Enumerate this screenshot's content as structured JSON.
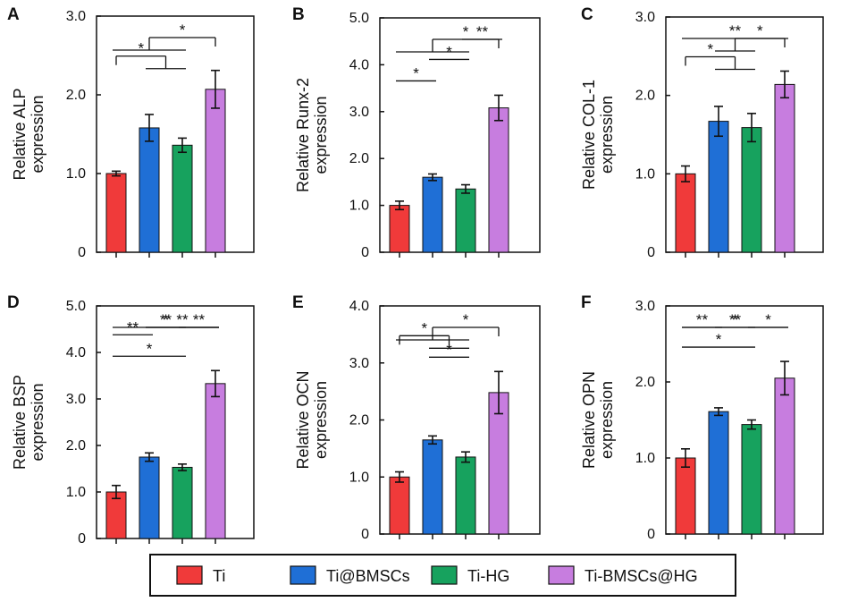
{
  "chart_data": [
    {
      "panel": "A",
      "type": "bar",
      "ylabel_line1": "Relative ALP",
      "ylabel_line2": "expression",
      "ylim": [
        0,
        3.0
      ],
      "yticks": [
        0,
        1.0,
        2.0,
        3.0
      ],
      "ytick_labels": [
        "0",
        "1.0",
        "2.0",
        "3.0"
      ],
      "categories": [
        "Ti",
        "Ti@BMSCs",
        "Ti-HG",
        "Ti-BMSCs@HG"
      ],
      "values": [
        1.0,
        1.58,
        1.36,
        2.07
      ],
      "errors": [
        0.03,
        0.17,
        0.09,
        0.24
      ],
      "annotations": [
        {
          "from": [
            1,
            2
          ],
          "to": 0,
          "label": "*"
        },
        {
          "from": [
            0,
            1,
            2
          ],
          "to": 3,
          "label": "*"
        }
      ]
    },
    {
      "panel": "B",
      "type": "bar",
      "ylabel_line1": "Relative Runx-2",
      "ylabel_line2": "expression",
      "ylim": [
        0,
        5.0
      ],
      "yticks": [
        0,
        1.0,
        2.0,
        3.0,
        4.0,
        5.0
      ],
      "ytick_labels": [
        "0",
        "1.0",
        "2.0",
        "3.0",
        "4.0",
        "5.0"
      ],
      "categories": [
        "Ti",
        "Ti@BMSCs",
        "Ti-HG",
        "Ti-BMSCs@HG"
      ],
      "values": [
        1.0,
        1.6,
        1.35,
        3.08
      ],
      "errors": [
        0.09,
        0.07,
        0.09,
        0.27
      ],
      "annotations": [
        {
          "from": [
            0
          ],
          "to": 1,
          "label": "*"
        },
        {
          "from": [
            1
          ],
          "to": 2,
          "label": "*"
        },
        {
          "from": [
            2
          ],
          "to": 3,
          "label": "**"
        },
        {
          "from": [
            0,
            1,
            2
          ],
          "to": 3,
          "label": "*"
        }
      ]
    },
    {
      "panel": "C",
      "type": "bar",
      "ylabel_line1": "Relative COL-1",
      "ylabel_line2": "expression",
      "ylim": [
        0,
        3.0
      ],
      "yticks": [
        0,
        1.0,
        2.0,
        3.0
      ],
      "ytick_labels": [
        "0",
        "1.0",
        "2.0",
        "3.0"
      ],
      "categories": [
        "Ti",
        "Ti@BMSCs",
        "Ti-HG",
        "Ti-BMSCs@HG"
      ],
      "values": [
        1.0,
        1.67,
        1.59,
        2.14
      ],
      "errors": [
        0.1,
        0.19,
        0.18,
        0.17
      ],
      "annotations": [
        {
          "from": [
            1,
            2
          ],
          "to": 0,
          "label": "*"
        },
        {
          "from": [
            1,
            2
          ],
          "to": 3,
          "label": "*"
        },
        {
          "from": [
            0
          ],
          "to": 3,
          "label": "**"
        }
      ]
    },
    {
      "panel": "D",
      "type": "bar",
      "ylabel_line1": "Relative BSP",
      "ylabel_line2": "expression",
      "ylim": [
        0,
        5.0
      ],
      "yticks": [
        0,
        1.0,
        2.0,
        3.0,
        4.0,
        5.0
      ],
      "ytick_labels": [
        "0",
        "1.0",
        "2.0",
        "3.0",
        "4.0",
        "5.0"
      ],
      "categories": [
        "Ti",
        "Ti@BMSCs",
        "Ti-HG",
        "Ti-BMSCs@HG"
      ],
      "values": [
        1.0,
        1.75,
        1.53,
        3.33
      ],
      "errors": [
        0.14,
        0.09,
        0.07,
        0.28
      ],
      "annotations": [
        {
          "from": [
            0
          ],
          "to": 2,
          "label": "*"
        },
        {
          "from": [
            0
          ],
          "to": 1,
          "label": "**"
        },
        {
          "from": [
            1
          ],
          "to": 2,
          "label": "*"
        },
        {
          "from": [
            2
          ],
          "to": 3,
          "label": "**"
        },
        {
          "from": [
            1
          ],
          "to": 3,
          "label": "**"
        },
        {
          "from": [
            0
          ],
          "to": 3,
          "label": "**"
        }
      ]
    },
    {
      "panel": "E",
      "type": "bar",
      "ylabel_line1": "Relative OCN",
      "ylabel_line2": "expression",
      "ylim": [
        0,
        4.0
      ],
      "yticks": [
        0,
        1.0,
        2.0,
        3.0,
        4.0
      ],
      "ytick_labels": [
        "0",
        "1.0",
        "2.0",
        "3.0",
        "4.0"
      ],
      "categories": [
        "Ti",
        "Ti@BMSCs",
        "Ti-HG",
        "Ti-BMSCs@HG"
      ],
      "values": [
        1.0,
        1.65,
        1.35,
        2.48
      ],
      "errors": [
        0.09,
        0.07,
        0.09,
        0.37
      ],
      "annotations": [
        {
          "from": [
            1
          ],
          "to": 2,
          "label": "*"
        },
        {
          "from": [
            1,
            2
          ],
          "to": 0,
          "label": "*"
        },
        {
          "from": [
            0,
            1,
            2
          ],
          "to": 3,
          "label": "*"
        }
      ]
    },
    {
      "panel": "F",
      "type": "bar",
      "ylabel_line1": "Relative OPN",
      "ylabel_line2": "expression",
      "ylim": [
        0,
        3.0
      ],
      "yticks": [
        0,
        1.0,
        2.0,
        3.0
      ],
      "ytick_labels": [
        "0",
        "1.0",
        "2.0",
        "3.0"
      ],
      "categories": [
        "Ti",
        "Ti@BMSCs",
        "Ti-HG",
        "Ti-BMSCs@HG"
      ],
      "values": [
        1.0,
        1.61,
        1.44,
        2.05
      ],
      "errors": [
        0.12,
        0.05,
        0.06,
        0.22
      ],
      "annotations": [
        {
          "from": [
            0
          ],
          "to": 2,
          "label": "*"
        },
        {
          "from": [
            0
          ],
          "to": 1,
          "label": "**"
        },
        {
          "from": [
            1
          ],
          "to": 2,
          "label": "*"
        },
        {
          "from": [
            2
          ],
          "to": 3,
          "label": "*"
        },
        {
          "from": [
            0
          ],
          "to": 3,
          "label": "**"
        }
      ]
    }
  ],
  "legend": {
    "items": [
      {
        "label": "Ti",
        "color": "#f03a3a"
      },
      {
        "label": "Ti@BMSCs",
        "color": "#1f6fd6"
      },
      {
        "label": "Ti-HG",
        "color": "#17a25e"
      },
      {
        "label": "Ti-BMSCs@HG",
        "color": "#c77ddf"
      }
    ]
  },
  "colors": {
    "bars": [
      "#f03a3a",
      "#1f6fd6",
      "#17a25e",
      "#c77ddf"
    ],
    "ink": "#111111"
  }
}
